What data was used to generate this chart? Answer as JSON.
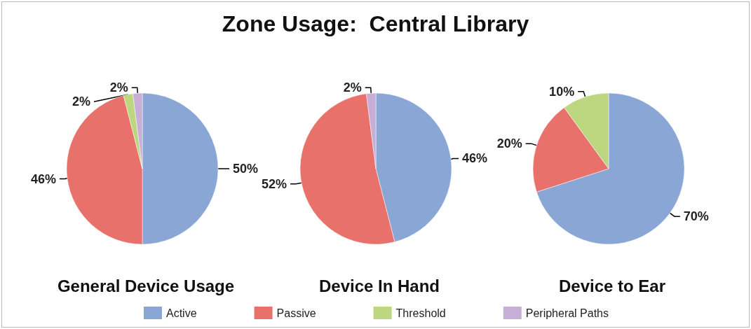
{
  "chart_data": {
    "type": "pie",
    "title": "Zone Usage:  Central Library",
    "categories": [
      "Active",
      "Passive",
      "Threshold",
      "Peripheral Paths"
    ],
    "colors": [
      "#8aa6d4",
      "#e8716c",
      "#bcd77f",
      "#c6aed6"
    ],
    "series": [
      {
        "name": "General Device Usage",
        "values": [
          50,
          46,
          2,
          2
        ],
        "value_labels": [
          "50%",
          "46%",
          "2%",
          "2%"
        ]
      },
      {
        "name": "Device In Hand",
        "values": [
          46,
          52,
          null,
          2
        ],
        "value_labels": [
          "46%",
          "52%",
          null,
          "2%"
        ]
      },
      {
        "name": "Device to Ear",
        "values": [
          70,
          20,
          10,
          null
        ],
        "value_labels": [
          "70%",
          "20%",
          "10%",
          null
        ]
      }
    ],
    "legend": "bottom"
  }
}
